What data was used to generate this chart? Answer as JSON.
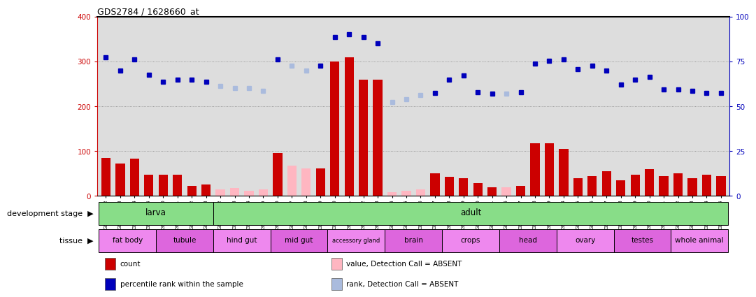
{
  "title": "GDS2784 / 1628660_at",
  "samples": [
    "GSM188092",
    "GSM188093",
    "GSM188094",
    "GSM188095",
    "GSM188100",
    "GSM188101",
    "GSM188102",
    "GSM188103",
    "GSM188072",
    "GSM188073",
    "GSM188074",
    "GSM188075",
    "GSM188076",
    "GSM188077",
    "GSM188078",
    "GSM188079",
    "GSM188080",
    "GSM188081",
    "GSM188082",
    "GSM188083",
    "GSM188084",
    "GSM188085",
    "GSM188086",
    "GSM188087",
    "GSM188088",
    "GSM188089",
    "GSM188090",
    "GSM188091",
    "GSM188096",
    "GSM188097",
    "GSM188098",
    "GSM188099",
    "GSM188104",
    "GSM188105",
    "GSM188106",
    "GSM188107",
    "GSM188108",
    "GSM188109",
    "GSM188110",
    "GSM188111",
    "GSM188112",
    "GSM188113",
    "GSM188114",
    "GSM188115"
  ],
  "count_values": [
    85,
    72,
    83,
    48,
    47,
    47,
    22,
    25,
    15,
    18,
    12,
    14,
    95,
    68,
    62,
    62,
    300,
    310,
    260,
    260,
    8,
    12,
    15,
    50,
    43,
    40,
    28,
    20,
    20,
    22,
    118,
    118,
    105,
    40,
    45,
    55,
    35,
    48,
    60,
    45,
    50,
    40,
    48,
    45
  ],
  "rank_values": [
    310,
    280,
    305,
    270,
    255,
    260,
    260,
    255,
    245,
    240,
    240,
    235,
    305,
    290,
    280,
    290,
    355,
    360,
    355,
    340,
    210,
    215,
    225,
    230,
    260,
    268,
    232,
    228,
    228,
    232,
    295,
    302,
    305,
    283,
    290,
    280,
    248,
    260,
    265,
    238,
    238,
    235,
    230,
    230
  ],
  "absent_mask": [
    false,
    false,
    false,
    false,
    false,
    false,
    false,
    false,
    true,
    true,
    true,
    true,
    false,
    true,
    true,
    false,
    false,
    false,
    false,
    false,
    true,
    true,
    true,
    false,
    false,
    false,
    false,
    false,
    true,
    false,
    false,
    false,
    false,
    false,
    false,
    false,
    false,
    false,
    false,
    false,
    false,
    false,
    false,
    false
  ],
  "dev_stages": [
    {
      "label": "larva",
      "start": 0,
      "end": 7
    },
    {
      "label": "adult",
      "start": 8,
      "end": 43
    }
  ],
  "tissue_groups": [
    {
      "label": "fat body",
      "start": 0,
      "end": 3
    },
    {
      "label": "tubule",
      "start": 4,
      "end": 7
    },
    {
      "label": "hind gut",
      "start": 8,
      "end": 11
    },
    {
      "label": "mid gut",
      "start": 12,
      "end": 15
    },
    {
      "label": "accessory gland",
      "start": 16,
      "end": 19
    },
    {
      "label": "brain",
      "start": 20,
      "end": 23
    },
    {
      "label": "crops",
      "start": 24,
      "end": 27
    },
    {
      "label": "head",
      "start": 28,
      "end": 31
    },
    {
      "label": "ovary",
      "start": 32,
      "end": 35
    },
    {
      "label": "testes",
      "start": 36,
      "end": 39
    },
    {
      "label": "whole animal",
      "start": 40,
      "end": 43
    }
  ],
  "bar_color_present": "#CC0000",
  "bar_color_absent": "#FFB6C1",
  "rank_color_present": "#0000BB",
  "rank_color_absent": "#AABBDD",
  "bg_color": "#DDDDDD",
  "green_color": "#88DD88",
  "tissue_colors": [
    "#EE88EE",
    "#DD66DD"
  ],
  "legend_items": [
    {
      "color": "#CC0000",
      "label": "count"
    },
    {
      "color": "#0000BB",
      "label": "percentile rank within the sample"
    },
    {
      "color": "#FFB6C1",
      "label": "value, Detection Call = ABSENT"
    },
    {
      "color": "#AABBDD",
      "label": "rank, Detection Call = ABSENT"
    }
  ]
}
